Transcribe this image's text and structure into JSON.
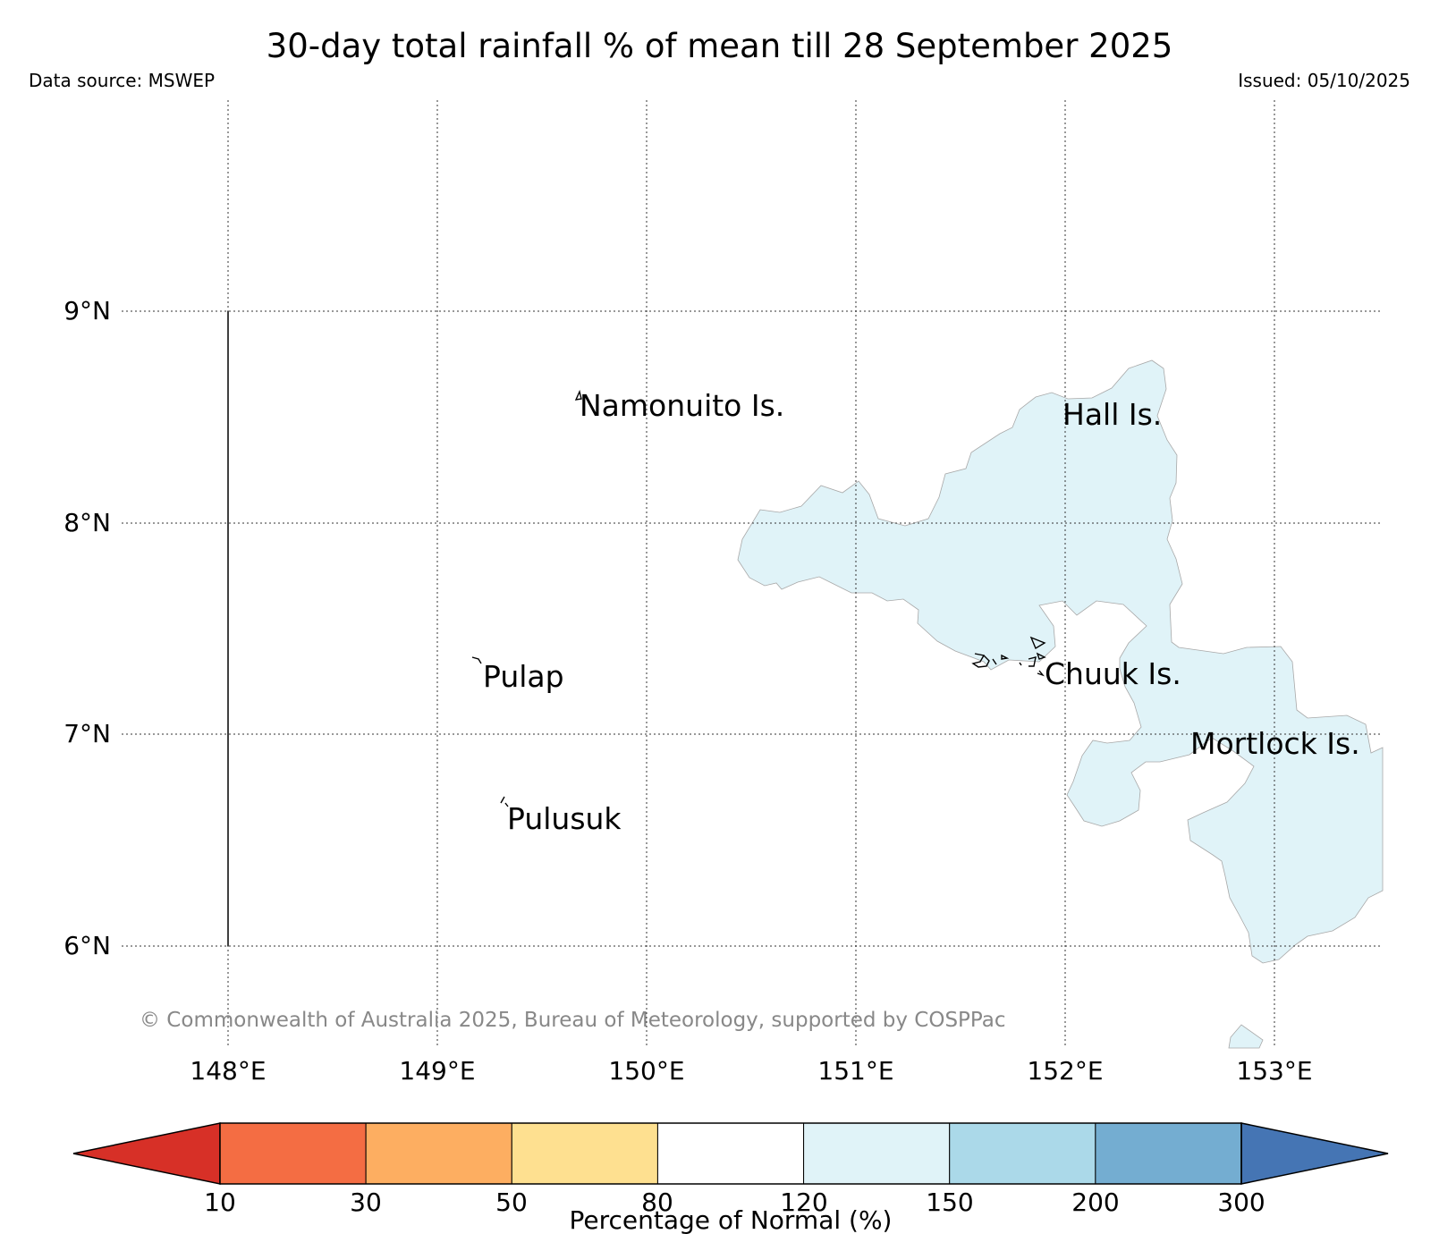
{
  "header": {
    "title": "30-day total rainfall % of mean till 28 September 2025",
    "data_source": "Data source: MSWEP",
    "issued": "Issued: 05/10/2025"
  },
  "map": {
    "lat_labels": [
      "9°N",
      "8°N",
      "7°N",
      "6°N"
    ],
    "lon_labels": [
      "148°E",
      "149°E",
      "150°E",
      "151°E",
      "152°E",
      "153°E"
    ],
    "places": [
      {
        "name": "Namonuito Is."
      },
      {
        "name": "Hall Is."
      },
      {
        "name": "Pulap"
      },
      {
        "name": "Chuuk Is."
      },
      {
        "name": "Mortlock Is."
      },
      {
        "name": "Pulusuk"
      }
    ],
    "copyright": "© Commonwealth of Australia 2025, Bureau of Meteorology, supported by COSPPac",
    "region_fill_color": "#e0f3f8",
    "region_category": "120-150"
  },
  "colorbar": {
    "label": "Percentage of Normal (%)",
    "ticks": [
      "10",
      "30",
      "50",
      "80",
      "120",
      "150",
      "200",
      "300"
    ],
    "under_color": "#d73027",
    "over_color": "#4575b4",
    "colors": [
      "#f46d43",
      "#fdae61",
      "#fee090",
      "#ffffff",
      "#e0f3f8",
      "#abd9e9",
      "#74add1"
    ]
  }
}
